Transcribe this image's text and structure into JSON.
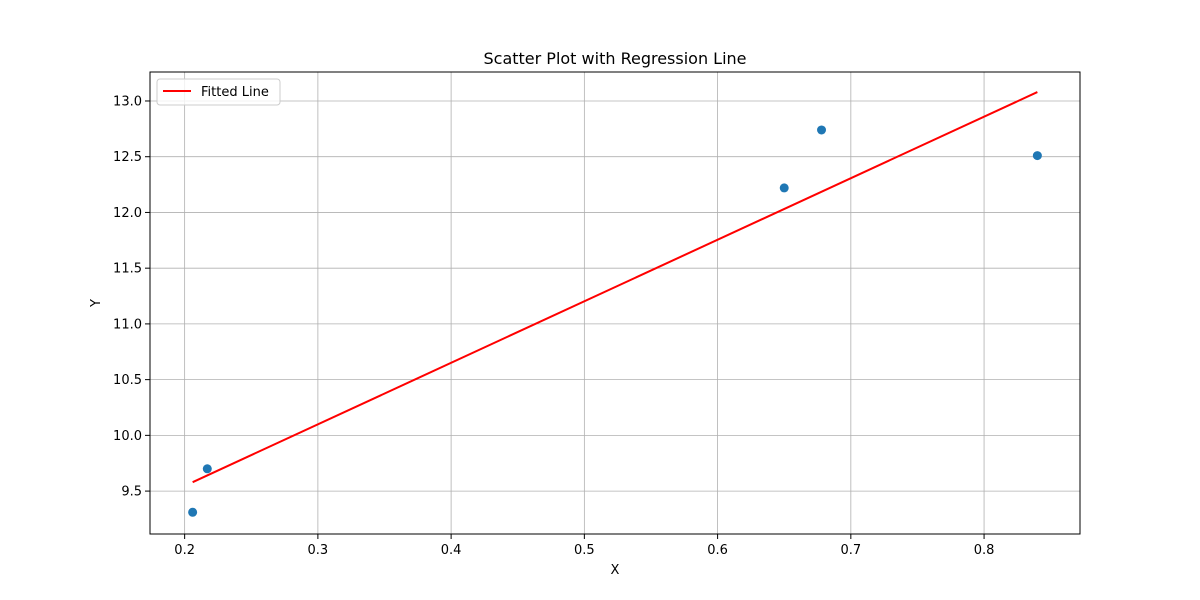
{
  "chart_data": {
    "type": "scatter",
    "title": "Scatter Plot with Regression Line",
    "xlabel": "X",
    "ylabel": "Y",
    "xlim": [
      0.174,
      0.872
    ],
    "ylim": [
      9.115,
      13.26
    ],
    "xticks": [
      0.2,
      0.3,
      0.4,
      0.5,
      0.6,
      0.7,
      0.8
    ],
    "xtick_labels": [
      "0.2",
      "0.3",
      "0.4",
      "0.5",
      "0.6",
      "0.7",
      "0.8"
    ],
    "yticks": [
      9.5,
      10.0,
      10.5,
      11.0,
      11.5,
      12.0,
      12.5,
      13.0
    ],
    "ytick_labels": [
      "9.5",
      "10.0",
      "10.5",
      "11.0",
      "11.5",
      "12.0",
      "12.5",
      "13.0"
    ],
    "grid": true,
    "legend_position": "top-left",
    "series": [
      {
        "kind": "scatter",
        "color": "#1f77b4",
        "points": [
          {
            "x": 0.206,
            "y": 9.31
          },
          {
            "x": 0.217,
            "y": 9.7
          },
          {
            "x": 0.65,
            "y": 12.22
          },
          {
            "x": 0.678,
            "y": 12.74
          },
          {
            "x": 0.84,
            "y": 12.51
          }
        ]
      },
      {
        "kind": "line",
        "name": "Fitted Line",
        "color": "#ff0000",
        "points": [
          {
            "x": 0.206,
            "y": 9.58
          },
          {
            "x": 0.84,
            "y": 13.08
          }
        ]
      }
    ]
  }
}
